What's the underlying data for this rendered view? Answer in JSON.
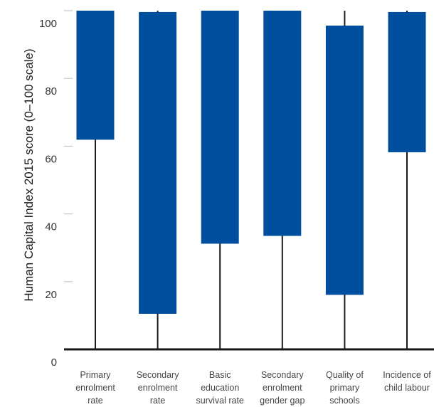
{
  "chart_data": {
    "type": "bar",
    "subtype": "floating-range-with-whisker",
    "ylabel": "Human Capital Index 2015 score (0–100 scale)",
    "xlabel": "",
    "title": "",
    "ylim": [
      0,
      100
    ],
    "yticks": [
      0,
      20,
      40,
      60,
      80,
      100
    ],
    "grid": false,
    "categories": [
      {
        "lines": [
          "Primary",
          "enrolment",
          "rate"
        ]
      },
      {
        "lines": [
          "Secondary",
          "enrolment",
          "rate"
        ]
      },
      {
        "lines": [
          "Basic",
          "education",
          "survival rate"
        ]
      },
      {
        "lines": [
          "Secondary",
          "enrolment",
          "gender gap"
        ]
      },
      {
        "lines": [
          "Quality of",
          "primary",
          "schools"
        ]
      },
      {
        "lines": [
          "Incidence of",
          "child labour"
        ]
      }
    ],
    "ranges": [
      {
        "low": 61.9,
        "high": 100
      },
      {
        "low": 10.5,
        "high": 99.6
      },
      {
        "low": 31.2,
        "high": 100
      },
      {
        "low": 33.5,
        "high": 100
      },
      {
        "low": 16.1,
        "high": 95.6
      },
      {
        "low": 58.2,
        "high": 99.6
      }
    ],
    "whisker": {
      "low": 0,
      "high": 100
    },
    "colors": {
      "bar": "#004f9e",
      "whisker": "#1a1a1a",
      "axis": "#1a1a1a",
      "tick": "#bbbbbb"
    }
  }
}
